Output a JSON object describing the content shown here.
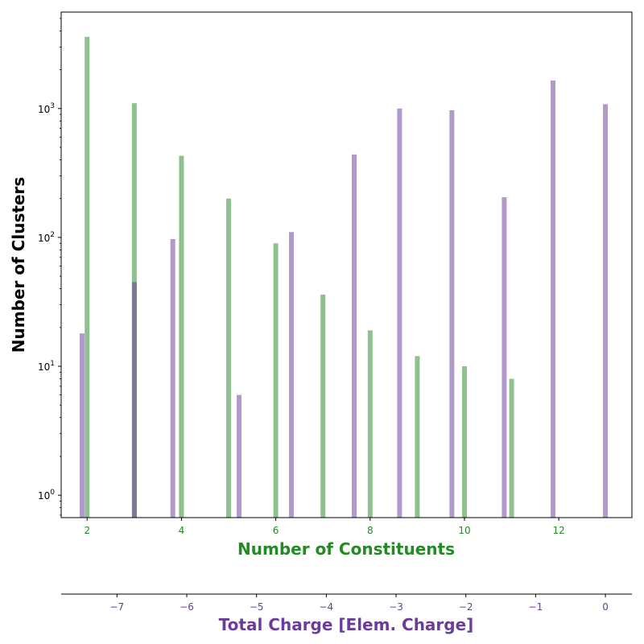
{
  "chart_data": {
    "type": "bar",
    "yscale": "log",
    "ylim": [
      0.67,
      5600
    ],
    "ylabel": "Number of Clusters",
    "colors": {
      "constituents": "#8fc18f",
      "charge": "#b199c9",
      "overlap": "#7d7893",
      "x_axis_text": "#228b22",
      "charge_axis_text": "#6a3d9a"
    },
    "x_axis": {
      "label": "Number of Constituents",
      "xlim": [
        1.45,
        13.55
      ],
      "ticks": [
        2,
        4,
        6,
        8,
        10,
        12
      ],
      "tick_labels": [
        "2",
        "4",
        "6",
        "8",
        "10",
        "12"
      ]
    },
    "secondary_x_axis": {
      "label": "Total Charge [Elem. Charge]",
      "xlim": [
        -7.8,
        0.38
      ],
      "ticks": [
        -7,
        -6,
        -5,
        -4,
        -3,
        -2,
        -1,
        0
      ],
      "tick_labels": [
        "−7",
        "−6",
        "−5",
        "−4",
        "−3",
        "−2",
        "−1",
        "0"
      ]
    },
    "y_ticks": [
      {
        "value": 1,
        "base": "10",
        "exp": "0"
      },
      {
        "value": 10,
        "base": "10",
        "exp": "1"
      },
      {
        "value": 100,
        "base": "10",
        "exp": "2"
      },
      {
        "value": 1000,
        "base": "10",
        "exp": "3"
      }
    ],
    "series": [
      {
        "key": "constituents",
        "x": [
          2,
          3,
          4,
          5,
          6,
          7,
          8,
          9,
          10,
          11
        ],
        "values": [
          3600,
          1100,
          430,
          200,
          90,
          36,
          19,
          12,
          10,
          8
        ]
      },
      {
        "key": "charge",
        "x": [
          -7.5,
          -6.75,
          -6.2,
          -5.25,
          -4.5,
          -3.6,
          -2.95,
          -2.2,
          -1.45,
          -0.75,
          0
        ],
        "values": [
          18,
          45,
          97,
          6,
          110,
          440,
          1000,
          970,
          205,
          1650,
          1080
        ]
      }
    ]
  }
}
